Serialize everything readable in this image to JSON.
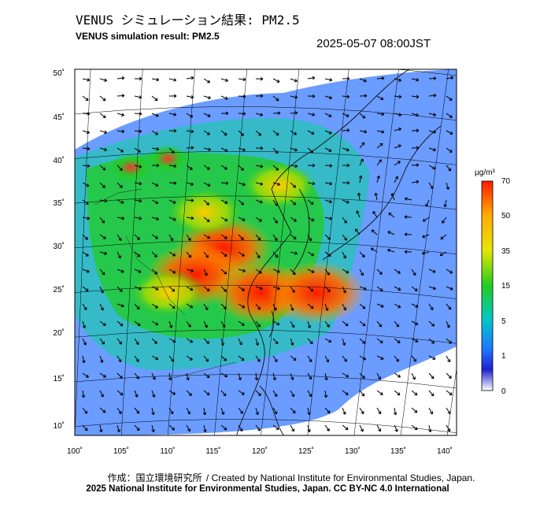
{
  "header": {
    "title_jp": "VENUS シミュレーション結果: PM2.5",
    "title_en": "VENUS simulation result: PM2.5",
    "timestamp": "2025-05-07 08:00JST"
  },
  "map": {
    "x_ticks": [
      "100˚",
      "105˚",
      "110˚",
      "115˚",
      "120˚",
      "125˚",
      "130˚",
      "135˚",
      "140˚"
    ],
    "y_ticks": [
      "50˚",
      "45˚",
      "40˚",
      "35˚",
      "30˚",
      "25˚",
      "20˚",
      "15˚",
      "10˚"
    ],
    "lon_range": [
      100,
      141
    ],
    "lat_range": [
      9,
      50
    ],
    "pollution_cells": [
      {
        "lon": 116,
        "lat": 30,
        "level": "high"
      },
      {
        "lon": 113,
        "lat": 27,
        "level": "high"
      },
      {
        "lon": 120,
        "lat": 25,
        "level": "high"
      },
      {
        "lon": 126,
        "lat": 25,
        "level": "high"
      },
      {
        "lon": 114,
        "lat": 34,
        "level": "med"
      },
      {
        "lon": 122,
        "lat": 37,
        "level": "med"
      },
      {
        "lon": 110,
        "lat": 25,
        "level": "med"
      },
      {
        "lon": 106,
        "lat": 39,
        "level": "low"
      },
      {
        "lon": 110,
        "lat": 40,
        "level": "low"
      }
    ]
  },
  "colorbar": {
    "unit": "µg/m³",
    "labels": [
      "70",
      "50",
      "35",
      "15",
      "5",
      "1",
      "0"
    ],
    "colors": [
      "#ff1a00",
      "#ffaa00",
      "#e6e600",
      "#22cc22",
      "#00c8c8",
      "#1e78ff",
      "#2020cc",
      "#ffffff"
    ]
  },
  "footer": {
    "credit_jp": "作成：国立環境研究所",
    "credit_en": "/ Created by National Institute for Environmental Studies, Japan.",
    "copyright": "2025 National Institute for Environmental Studies, Japan. CC BY-NC 4.0 International"
  }
}
